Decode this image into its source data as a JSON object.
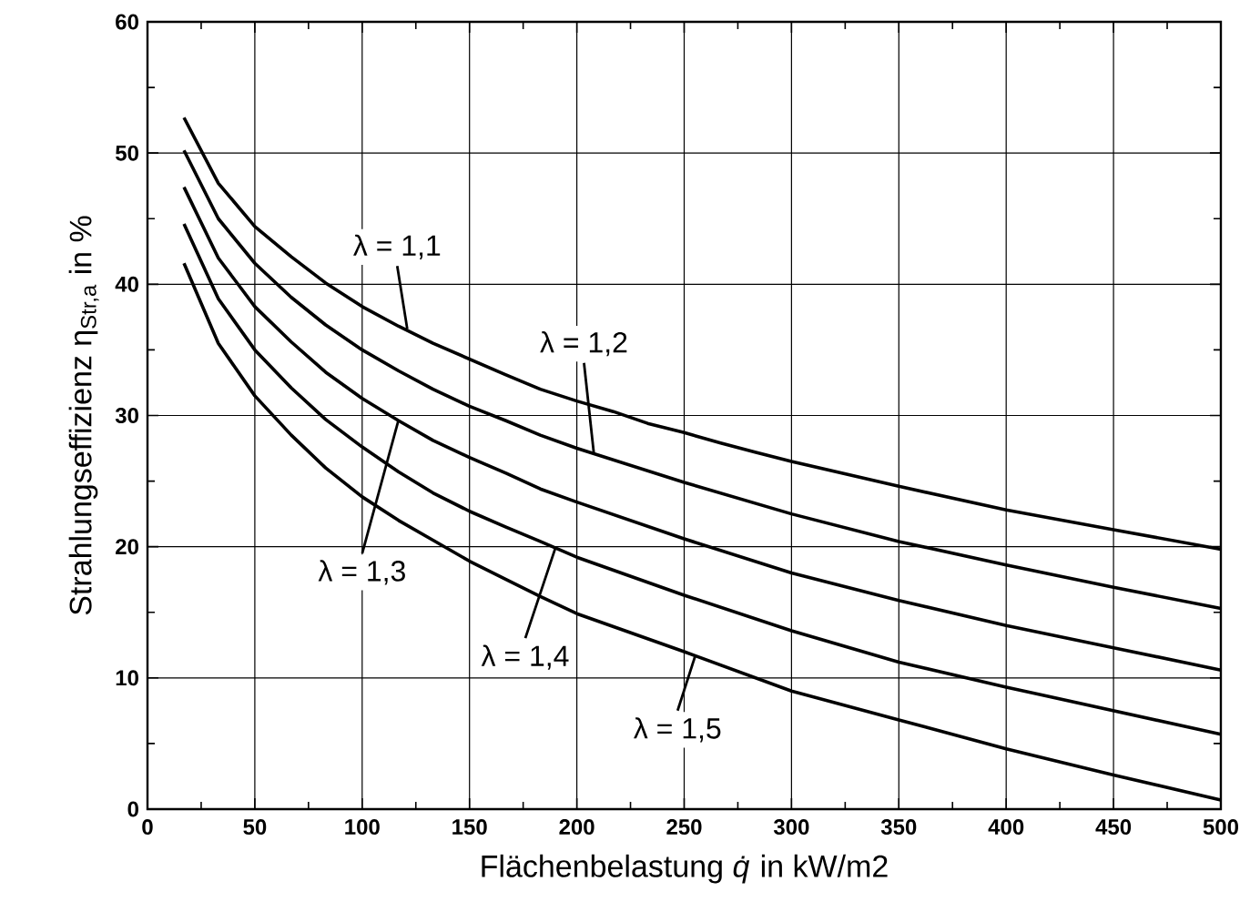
{
  "chart_data": {
    "type": "line",
    "xlabel": "Flächenbelastung *q̇* in kW/m2",
    "ylabel": "Strahlungseffizienz η$_{Str,a}$ in %",
    "xlim": [
      0,
      500
    ],
    "ylim": [
      0,
      60
    ],
    "xticks": [
      0,
      50,
      100,
      150,
      200,
      250,
      300,
      350,
      400,
      450,
      500
    ],
    "yticks": [
      0,
      10,
      20,
      30,
      40,
      50,
      60
    ],
    "grid": true,
    "marker": "none",
    "line_style": "solid",
    "series": [
      {
        "color": "#000000",
        "x": [
          17,
          33,
          50,
          67,
          83,
          100,
          117,
          133,
          150,
          167,
          183,
          200,
          217,
          233,
          250,
          267,
          283,
          300,
          350,
          400,
          450,
          500
        ],
        "values": [
          52.7,
          47.7,
          44.4,
          42.1,
          40.1,
          38.3,
          36.8,
          35.5,
          34.3,
          33.1,
          32.0,
          31.1,
          30.3,
          29.4,
          28.7,
          27.9,
          27.2,
          26.5,
          24.6,
          22.8,
          21.3,
          19.8
        ]
      },
      {
        "color": "#000000",
        "x": [
          17,
          33,
          50,
          67,
          83,
          100,
          117,
          133,
          150,
          167,
          183,
          200,
          250,
          300,
          350,
          400,
          450,
          500
        ],
        "values": [
          50.2,
          45.0,
          41.6,
          39.0,
          36.9,
          35.0,
          33.4,
          32.0,
          30.7,
          29.6,
          28.5,
          27.5,
          24.9,
          22.5,
          20.4,
          18.6,
          16.9,
          15.3
        ]
      },
      {
        "color": "#000000",
        "x": [
          17,
          33,
          50,
          67,
          83,
          100,
          117,
          133,
          150,
          167,
          183,
          200,
          250,
          300,
          350,
          400,
          450,
          500
        ],
        "values": [
          47.4,
          42.0,
          38.3,
          35.6,
          33.3,
          31.3,
          29.6,
          28.1,
          26.8,
          25.6,
          24.4,
          23.4,
          20.6,
          18.0,
          15.9,
          14.0,
          12.3,
          10.6
        ]
      },
      {
        "color": "#000000",
        "x": [
          17,
          33,
          50,
          67,
          83,
          100,
          117,
          133,
          150,
          167,
          183,
          200,
          250,
          300,
          350,
          400,
          450,
          500
        ],
        "values": [
          44.6,
          38.9,
          35.0,
          32.1,
          29.7,
          27.6,
          25.7,
          24.1,
          22.7,
          21.5,
          20.4,
          19.2,
          16.3,
          13.6,
          11.2,
          9.3,
          7.5,
          5.7
        ]
      },
      {
        "color": "#000000",
        "x": [
          17,
          33,
          50,
          67,
          83,
          100,
          117,
          133,
          150,
          167,
          183,
          200,
          250,
          300,
          350,
          400,
          450,
          500
        ],
        "values": [
          41.6,
          35.5,
          31.5,
          28.5,
          26.0,
          23.8,
          22.0,
          20.5,
          18.9,
          17.5,
          16.2,
          14.9,
          12.0,
          9.0,
          6.8,
          4.6,
          2.6,
          0.7
        ]
      }
    ],
    "annotations": [
      {
        "text": "λ = 1,1",
        "x": 121,
        "y": 36.6
      },
      {
        "text": "λ = 1,2",
        "x": 208,
        "y": 27.0
      },
      {
        "text": "λ = 1,3",
        "x": 117,
        "y": 29.7
      },
      {
        "text": "λ = 1,4",
        "x": 190,
        "y": 19.9
      },
      {
        "text": "λ = 1,5",
        "x": 255,
        "y": 11.6
      }
    ]
  }
}
